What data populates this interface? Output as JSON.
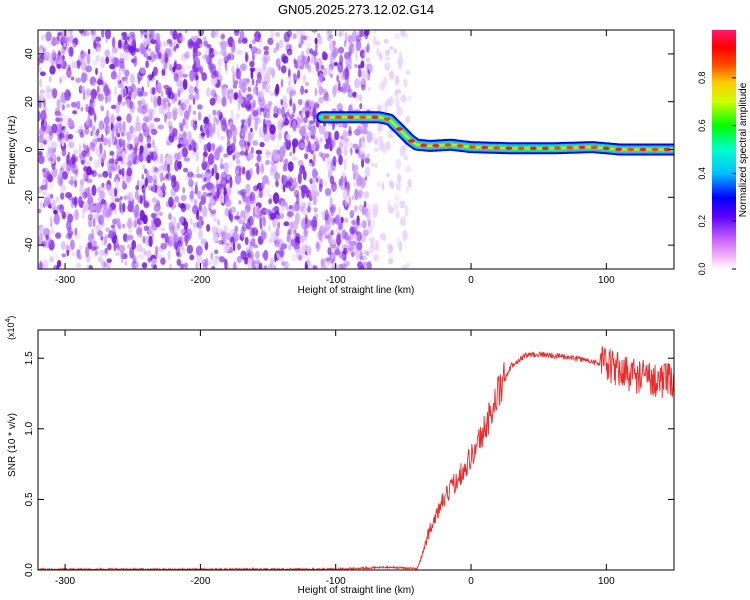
{
  "title": "GN05.2025.273.12.02.G14",
  "chart_data": [
    {
      "type": "heatmap",
      "title": "GN05.2025.273.12.02.G14",
      "xlabel": "Height of straight line (km)",
      "ylabel": "Frequency (Hz)",
      "xlim": [
        -320,
        150
      ],
      "ylim": [
        -50,
        50
      ],
      "x_ticks": [
        -300,
        -200,
        -100,
        0,
        100
      ],
      "y_ticks": [
        -40,
        -20,
        0,
        20,
        40
      ],
      "colorbar": {
        "label": "Normalized spectral amplitude",
        "range": [
          0,
          1
        ],
        "ticks": [
          0.0,
          0.2,
          0.4,
          0.6,
          0.8
        ],
        "tick_labels": [
          "0.0",
          "0.2",
          "0.4",
          "0.6",
          "0.8"
        ],
        "colors": [
          "#ffffff",
          "#ee82ee",
          "#8a2be2",
          "#0000ff",
          "#00e5ff",
          "#00ff00",
          "#ffff00",
          "#ff8c00",
          "#ff0000",
          "#ff1493"
        ]
      },
      "signal_track": {
        "x": [
          -110,
          -80,
          -68,
          -60,
          -52,
          -45,
          -40,
          -30,
          -15,
          0,
          30,
          60,
          90,
          110,
          150
        ],
        "freq_hz": [
          13.5,
          13.5,
          13.5,
          12.5,
          8,
          4,
          2,
          1.5,
          2,
          1,
          0.5,
          0.5,
          1,
          0,
          0
        ]
      },
      "noise_region": {
        "x_from": -320,
        "x_to": -45,
        "dense_to": -75
      },
      "grid": false
    },
    {
      "type": "line",
      "xlabel": "Height of straight line (km)",
      "ylabel": "SNR (10 * v/v)",
      "multiplier": "(x10",
      "multiplier_exp": "4",
      "xlim": [
        -320,
        150
      ],
      "ylim": [
        0,
        1.7
      ],
      "x_ticks": [
        -300,
        -200,
        -100,
        0,
        100
      ],
      "y_ticks": [
        0.0,
        0.5,
        1.0,
        1.5
      ],
      "y_tick_labels": [
        "0.0",
        "0.5",
        "1.0",
        "1.5"
      ],
      "series": [
        {
          "color": "#ee2a2a",
          "x": [
            -320,
            -200,
            -100,
            -60,
            -40,
            -38,
            -30,
            -20,
            -10,
            0,
            10,
            20,
            30,
            40,
            50,
            70,
            90,
            100,
            120,
            150
          ],
          "values": [
            0.005,
            0.005,
            0.006,
            0.02,
            0.01,
            0.05,
            0.3,
            0.5,
            0.65,
            0.8,
            1.0,
            1.25,
            1.45,
            1.52,
            1.53,
            1.51,
            1.48,
            1.45,
            1.38,
            1.33
          ]
        }
      ],
      "grid": false
    }
  ]
}
